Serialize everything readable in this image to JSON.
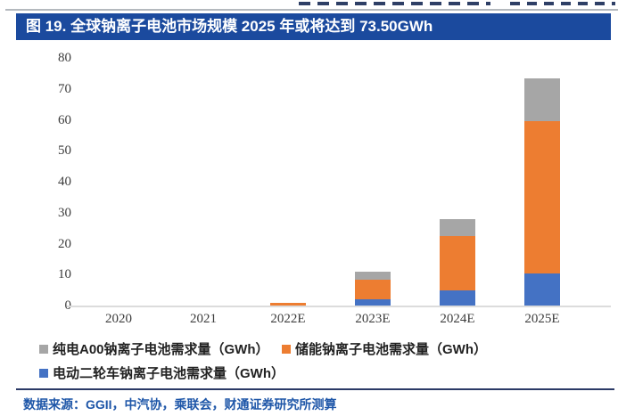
{
  "figure": {
    "title": "图 19. 全球钠离子电池市场规模 2025 年或将达到 73.50GWh"
  },
  "chart_data": {
    "type": "bar",
    "stacked": true,
    "title": "图 19. 全球钠离子电池市场规模 2025 年或将达到 73.50GWh",
    "categories": [
      "2020",
      "2021",
      "2022E",
      "2023E",
      "2024E",
      "2025E"
    ],
    "series": [
      {
        "name": "电动二轮车钠离子电池需求量（GWh）",
        "color": "#4472C4",
        "values": [
          0,
          0,
          0,
          2,
          5,
          10.5
        ]
      },
      {
        "name": "储能钠离子电池需求量（GWh）",
        "color": "#ED7D31",
        "values": [
          0,
          0,
          1,
          6.3,
          17.5,
          49
        ]
      },
      {
        "name": "纯电A00钠离子电池需求量（GWh）",
        "color": "#A6A6A6",
        "values": [
          0,
          0,
          0,
          2.7,
          5.5,
          14
        ]
      }
    ],
    "xlabel": "",
    "ylabel": "",
    "ylim": [
      0,
      80
    ],
    "ytick_step": 10,
    "grid": false,
    "legend_position": "bottom"
  },
  "legend": {
    "items": [
      {
        "label": "纯电A00钠离子电池需求量（GWh）",
        "color": "#A6A6A6"
      },
      {
        "label": "储能钠离子电池需求量（GWh）",
        "color": "#ED7D31"
      },
      {
        "label": "电动二轮车钠离子电池需求量（GWh）",
        "color": "#4472C4"
      }
    ]
  },
  "source": {
    "text": "数据来源：GGII，中汽协，乘联会，财通证券研究所测算"
  },
  "colors": {
    "title_bar": "#1B4A9E",
    "rule": "#2B3A66",
    "source_text": "#1E56A8",
    "bar_blue": "#4472C4",
    "bar_orange": "#ED7D31",
    "bar_gray": "#A6A6A6",
    "axis_line": "#DCDCDC"
  }
}
